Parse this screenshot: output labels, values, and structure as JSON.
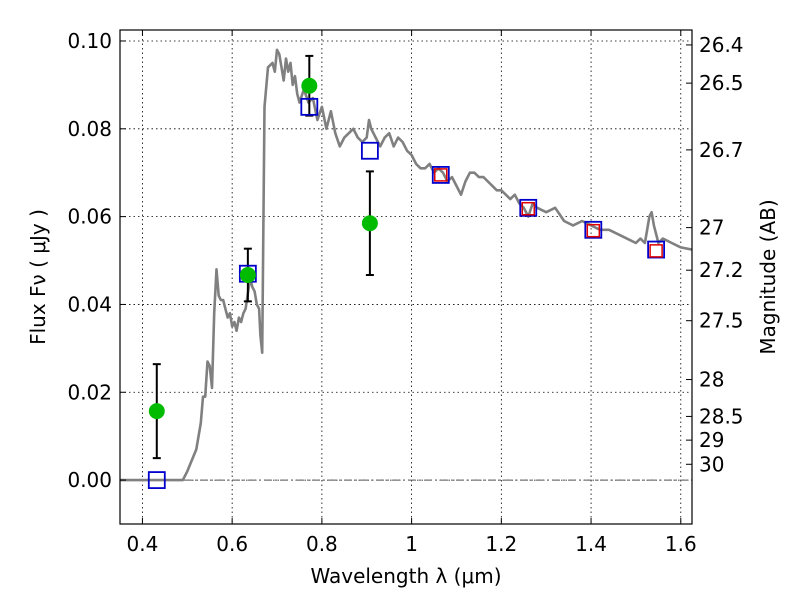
{
  "chart_data": {
    "type": "scatter",
    "xlabel": "Wavelength  λ (μm)",
    "ylabel": "Flux  Fν  ( μJy )",
    "y2label": "Magnitude (AB)",
    "xlim": [
      0.35,
      1.625
    ],
    "ylim": [
      -0.01,
      0.1025
    ],
    "grid": true,
    "x_ticks": [
      0.4,
      0.6,
      0.8,
      1.0,
      1.2,
      1.4,
      1.6
    ],
    "x_tick_labels": [
      "0.4",
      "0.6",
      "0.8",
      "1",
      "1.2",
      "1.4",
      "1.6"
    ],
    "y_ticks": [
      0.0,
      0.02,
      0.04,
      0.06,
      0.08,
      0.1
    ],
    "y_tick_labels": [
      "0.00",
      "0.02",
      "0.04",
      "0.06",
      "0.08",
      "0.10"
    ],
    "y2_ticks": [
      {
        "label": "26.4",
        "flux": 0.0991
      },
      {
        "label": "26.5",
        "flux": 0.0904
      },
      {
        "label": "26.7",
        "flux": 0.0752
      },
      {
        "label": "27",
        "flux": 0.0575
      },
      {
        "label": "27.2",
        "flux": 0.0478
      },
      {
        "label": "27.5",
        "flux": 0.0363
      },
      {
        "label": "28",
        "flux": 0.0229
      },
      {
        "label": "28.5",
        "flux": 0.0145
      },
      {
        "label": "29",
        "flux": 0.0091
      },
      {
        "label": "30",
        "flux": 0.0036
      }
    ],
    "zero_line": 0.0,
    "colors": {
      "sed": "#808080",
      "observed": "#00bb00",
      "model_box": "#0000cc",
      "inner_box": "#dd0000",
      "errorbar": "#000000"
    },
    "series": [
      {
        "kind": "line",
        "x": [
          0.35,
          0.49,
          0.5,
          0.52,
          0.53,
          0.535,
          0.54,
          0.545,
          0.55,
          0.555,
          0.56,
          0.565,
          0.57,
          0.575,
          0.58,
          0.585,
          0.59,
          0.595,
          0.6,
          0.605,
          0.61,
          0.615,
          0.62,
          0.625,
          0.63,
          0.64,
          0.645,
          0.65,
          0.655,
          0.66,
          0.663,
          0.667,
          0.672,
          0.68,
          0.69,
          0.695,
          0.7,
          0.705,
          0.71,
          0.715,
          0.72,
          0.725,
          0.73,
          0.735,
          0.74,
          0.745,
          0.75,
          0.76,
          0.77,
          0.78,
          0.79,
          0.8,
          0.81,
          0.82,
          0.83,
          0.84,
          0.85,
          0.86,
          0.87,
          0.88,
          0.89,
          0.9,
          0.905,
          0.91,
          0.92,
          0.93,
          0.94,
          0.95,
          0.96,
          0.97,
          0.98,
          0.99,
          1.0,
          1.01,
          1.02,
          1.03,
          1.04,
          1.05,
          1.06,
          1.07,
          1.08,
          1.09,
          1.1,
          1.11,
          1.12,
          1.13,
          1.14,
          1.15,
          1.16,
          1.17,
          1.18,
          1.19,
          1.2,
          1.21,
          1.22,
          1.23,
          1.24,
          1.25,
          1.26,
          1.27,
          1.28,
          1.3,
          1.32,
          1.34,
          1.36,
          1.38,
          1.4,
          1.42,
          1.44,
          1.46,
          1.48,
          1.5,
          1.51,
          1.52,
          1.53,
          1.535,
          1.54,
          1.55,
          1.56,
          1.58,
          1.6,
          1.625
        ],
        "y": [
          0.0,
          0.0,
          0.002,
          0.007,
          0.013,
          0.019,
          0.019,
          0.027,
          0.026,
          0.021,
          0.038,
          0.048,
          0.042,
          0.041,
          0.041,
          0.039,
          0.037,
          0.038,
          0.035,
          0.036,
          0.034,
          0.037,
          0.036,
          0.038,
          0.039,
          0.046,
          0.044,
          0.043,
          0.04,
          0.039,
          0.033,
          0.029,
          0.085,
          0.094,
          0.095,
          0.093,
          0.098,
          0.097,
          0.094,
          0.091,
          0.096,
          0.093,
          0.095,
          0.09,
          0.092,
          0.088,
          0.086,
          0.089,
          0.086,
          0.087,
          0.082,
          0.085,
          0.08,
          0.084,
          0.079,
          0.076,
          0.078,
          0.079,
          0.08,
          0.078,
          0.077,
          0.078,
          0.082,
          0.08,
          0.078,
          0.076,
          0.078,
          0.079,
          0.076,
          0.078,
          0.077,
          0.075,
          0.074,
          0.072,
          0.071,
          0.071,
          0.072,
          0.07,
          0.071,
          0.07,
          0.068,
          0.069,
          0.067,
          0.065,
          0.068,
          0.07,
          0.07,
          0.069,
          0.069,
          0.068,
          0.067,
          0.066,
          0.066,
          0.065,
          0.064,
          0.065,
          0.063,
          0.062,
          0.06,
          0.063,
          0.062,
          0.061,
          0.062,
          0.059,
          0.058,
          0.059,
          0.058,
          0.057,
          0.057,
          0.056,
          0.055,
          0.054,
          0.055,
          0.054,
          0.06,
          0.061,
          0.058,
          0.054,
          0.055,
          0.054,
          0.053,
          0.0525
        ]
      },
      {
        "kind": "observed_points",
        "x": [
          0.432,
          0.635,
          0.772,
          0.907
        ],
        "y": [
          0.0157,
          0.0467,
          0.0898,
          0.0585
        ],
        "yerr": [
          0.0107,
          0.006,
          0.0068,
          0.0118
        ]
      },
      {
        "kind": "model_boxes",
        "x": [
          0.432,
          0.635,
          0.772,
          0.907,
          1.065,
          1.26,
          1.405,
          1.545
        ],
        "y": [
          0.0,
          0.047,
          0.085,
          0.075,
          0.0695,
          0.062,
          0.057,
          0.0525
        ]
      },
      {
        "kind": "inner_boxes",
        "x": [
          1.065,
          1.26,
          1.405,
          1.545
        ],
        "y": [
          0.0695,
          0.0618,
          0.0568,
          0.0522
        ]
      }
    ]
  }
}
